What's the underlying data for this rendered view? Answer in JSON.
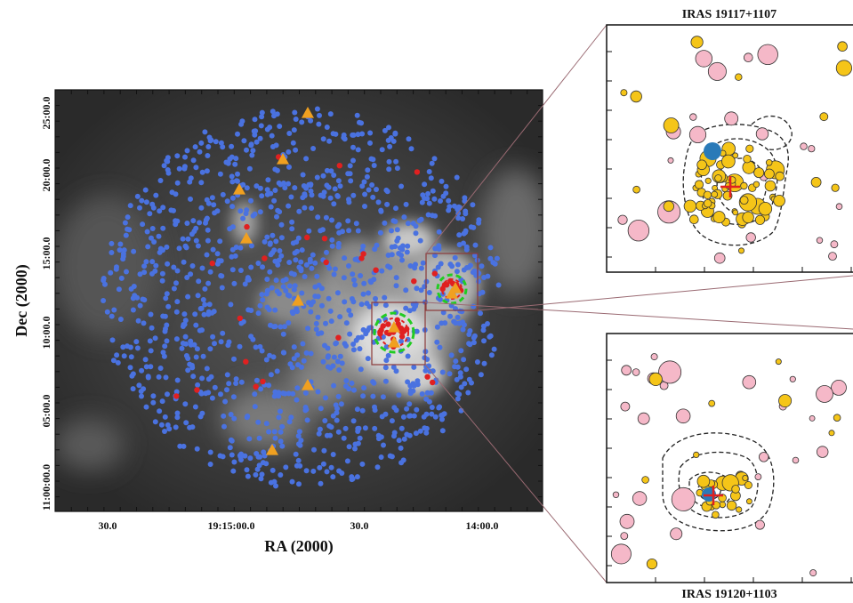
{
  "chart_data": [
    {
      "type": "scatter",
      "xlabel": "RA (2000)",
      "ylabel": "Dec (2000)",
      "x_tick_labels": [
        "30.0",
        "19:15:00.0",
        "30.0",
        "14:00.0"
      ],
      "y_tick_labels": [
        "11:00:00.0",
        "05:00.0",
        "10:00.0",
        "15:00.0",
        "20:00.0",
        "25:00.0"
      ],
      "background": "grayscale-image",
      "series": [
        {
          "color": "#4a72e0",
          "marker": "circle",
          "count": 1200
        },
        {
          "color": "#e02020",
          "marker": "circle",
          "count": 55
        },
        {
          "color": "#f0a020",
          "marker": "triangle",
          "x_labels_approx": [
            "19:14:53",
            "19:14:44",
            "19:14:39",
            "19:14:48",
            "19:14:48",
            "19:14:38",
            "19:14:59",
            "19:15:00",
            "19:15:04",
            "19:14:19",
            "19:14:10"
          ],
          "count": 11
        }
      ],
      "regions": [
        {
          "shape": "box",
          "color": "#8b3a3a",
          "around": "IRAS 19120+1103"
        },
        {
          "shape": "box",
          "color": "#8b3a3a",
          "around": "IRAS 19117+1107"
        },
        {
          "shape": "dashed-circle",
          "color": "#22cc22"
        }
      ]
    },
    {
      "type": "scatter",
      "title": "IRAS 19117+1107",
      "series": [
        {
          "color": "#f5c518",
          "marker": "circle",
          "count": 80
        },
        {
          "color": "#f5b8c8",
          "marker": "circle",
          "count": 22
        },
        {
          "color": "#2a7ab8",
          "marker": "circle",
          "count": 1
        }
      ],
      "contours": "dashed",
      "marker_cross": "#e02020"
    },
    {
      "type": "scatter",
      "title": "IRAS 19120+1103",
      "series": [
        {
          "color": "#f5c518",
          "marker": "circle",
          "count": 35
        },
        {
          "color": "#f5b8c8",
          "marker": "circle",
          "count": 30
        },
        {
          "color": "#2a7ab8",
          "marker": "circle",
          "count": 1
        }
      ],
      "contours": "dashed",
      "marker_cross": "#e02020"
    }
  ]
}
